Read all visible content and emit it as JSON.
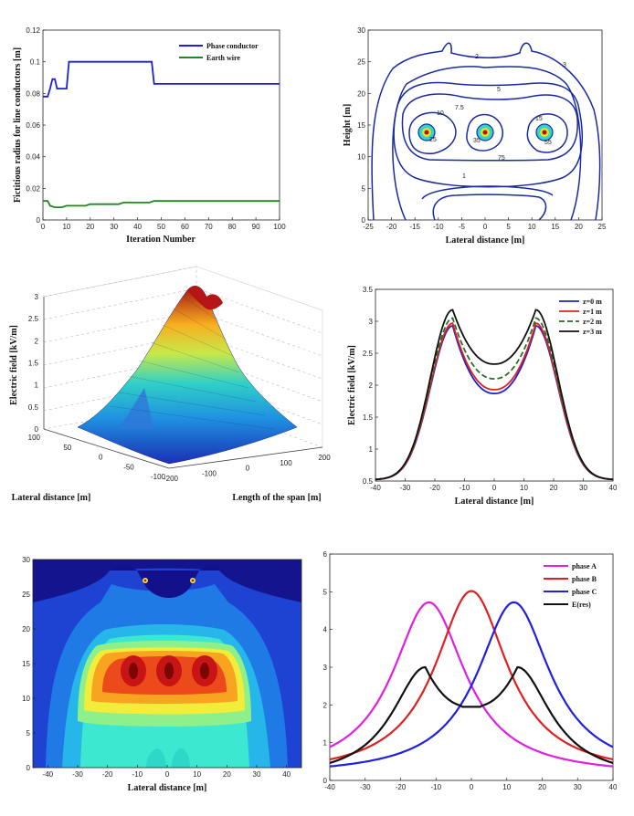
{
  "chart_data": [
    {
      "id": "p1",
      "type": "line",
      "title": "",
      "xlabel": "Iteration Number",
      "ylabel": "Fictitious radius for line conductors [m]",
      "xlim": [
        0,
        100
      ],
      "ylim": [
        0,
        0.12
      ],
      "xticks": [
        0,
        10,
        20,
        30,
        40,
        50,
        60,
        70,
        80,
        90,
        100
      ],
      "yticks": [
        0,
        0.02,
        0.04,
        0.06,
        0.08,
        0.1,
        0.12
      ],
      "ytick_labels": [
        "0",
        "0.02",
        "0.04",
        "0.06",
        "0.08",
        "0.1",
        "0.12"
      ],
      "legend": [
        "Phase conductor",
        "Earth wire"
      ],
      "series": [
        {
          "name": "Phase conductor",
          "color": "#1f1fd6",
          "x": [
            0,
            2,
            3,
            4,
            5,
            6,
            7,
            10,
            11,
            46,
            47,
            100
          ],
          "y": [
            0.078,
            0.078,
            0.083,
            0.089,
            0.089,
            0.083,
            0.083,
            0.083,
            0.1,
            0.1,
            0.086,
            0.086
          ]
        },
        {
          "name": "Earth wire",
          "color": "#1e8a1e",
          "x": [
            0,
            2,
            3,
            5,
            8,
            10,
            12,
            18,
            20,
            32,
            34,
            45,
            47,
            100
          ],
          "y": [
            0.012,
            0.012,
            0.009,
            0.008,
            0.008,
            0.009,
            0.009,
            0.009,
            0.01,
            0.01,
            0.011,
            0.011,
            0.012,
            0.012
          ]
        }
      ]
    },
    {
      "id": "p2",
      "type": "contour",
      "xlabel": "Lateral distance [m]",
      "ylabel": "Height [m]",
      "xlim": [
        -25,
        25
      ],
      "ylim": [
        0,
        30
      ],
      "xticks": [
        -25,
        -20,
        -15,
        -10,
        -5,
        0,
        5,
        10,
        15,
        20,
        25
      ],
      "yticks": [
        0,
        5,
        10,
        15,
        20,
        25,
        30
      ],
      "contour_labels": [
        "2",
        "3",
        "5",
        "7.5",
        "10",
        "15",
        "25",
        "35",
        "55",
        "75",
        "1"
      ]
    },
    {
      "id": "p3",
      "type": "surface",
      "xlabel": "Length of the span [m]",
      "ylabel": "Lateral distance [m]",
      "zlabel": "Electric field [kV/m]",
      "xticks": [
        -200,
        -100,
        0,
        100,
        200
      ],
      "yticks": [
        -100,
        -50,
        0,
        50,
        100
      ],
      "zticks": [
        0,
        0.5,
        1,
        1.5,
        2,
        2.5,
        3
      ],
      "zmax": 3
    },
    {
      "id": "p4",
      "type": "line",
      "xlabel": "Lateral distance [m]",
      "ylabel": "Electric field [kV/m]",
      "xlim": [
        -40,
        40
      ],
      "ylim": [
        0.5,
        3.5
      ],
      "xticks": [
        -40,
        -30,
        -20,
        -10,
        0,
        10,
        20,
        30,
        40
      ],
      "yticks": [
        0.5,
        1,
        1.5,
        2,
        2.5,
        3,
        3.5
      ],
      "series": [
        {
          "name": "z=0 m",
          "color": "#2020d0",
          "dash": "",
          "peak": 2.93,
          "dip": 1.87
        },
        {
          "name": "z=1 m",
          "color": "#e02020",
          "dash": "",
          "peak": 2.97,
          "dip": 1.93
        },
        {
          "name": "z=2 m",
          "color": "#2a6e2a",
          "dash": "6 3",
          "peak": 3.05,
          "dip": 2.1
        },
        {
          "name": "z=3 m",
          "color": "#111111",
          "dash": "",
          "peak": 3.18,
          "dip": 2.33
        }
      ]
    },
    {
      "id": "p5",
      "type": "heatmap",
      "xlabel": "Lateral distance [m]",
      "ylabel": "",
      "xlim": [
        -45,
        45
      ],
      "ylim": [
        0,
        30
      ],
      "xticks": [
        -40,
        -30,
        -20,
        -10,
        0,
        10,
        20,
        30,
        40
      ],
      "yticks": [
        0,
        5,
        10,
        15,
        20,
        25,
        30
      ]
    },
    {
      "id": "p6",
      "type": "line",
      "xlabel": "",
      "ylabel": "",
      "xlim": [
        -40,
        40
      ],
      "ylim": [
        0,
        6
      ],
      "xticks": [
        -40,
        -30,
        -20,
        -10,
        0,
        10,
        20,
        30,
        40
      ],
      "yticks": [
        0,
        1,
        2,
        3,
        4,
        5,
        6
      ],
      "series": [
        {
          "name": "phase A",
          "color": "#e020e0",
          "center": -12,
          "peak": 4.72
        },
        {
          "name": "phase B",
          "color": "#e02020",
          "center": 0,
          "peak": 5.02
        },
        {
          "name": "phase C",
          "color": "#2020e0",
          "center": 12,
          "peak": 4.72
        },
        {
          "name": "E(res)",
          "color": "#111111",
          "peak": 3.0,
          "dip": 1.95
        }
      ]
    }
  ]
}
